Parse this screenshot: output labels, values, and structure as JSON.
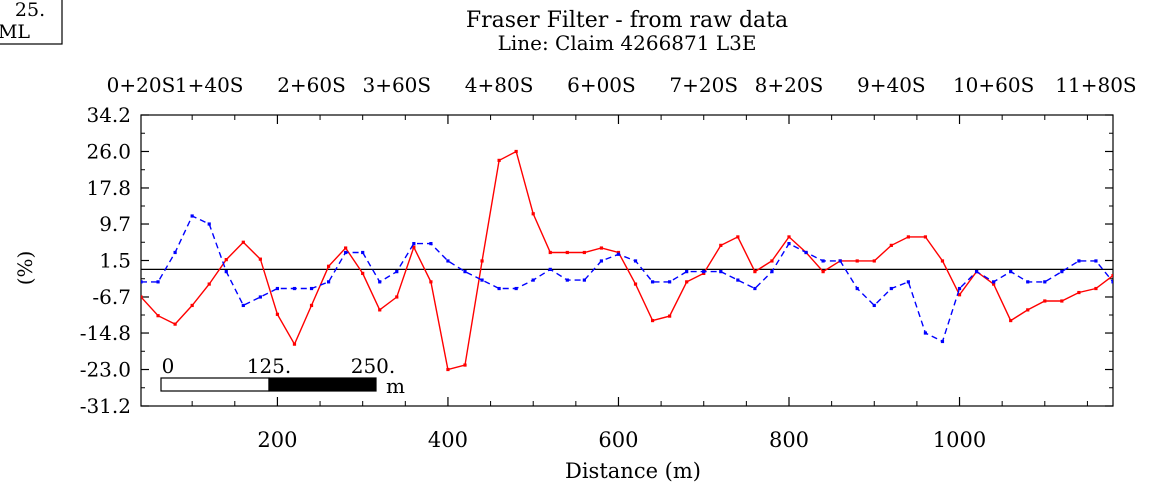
{
  "corner_box": {
    "line1": "25.",
    "line2": "ML"
  },
  "chart_data": {
    "type": "line",
    "title": "Fraser Filter - from raw data",
    "subtitle": "Line: Claim 4266871 L3E",
    "xlabel": "Distance (m)",
    "ylabel": "(%)",
    "xlim": [
      40,
      1180
    ],
    "ylim": [
      -31.2,
      34.2
    ],
    "x_ticks": [
      200,
      400,
      600,
      800,
      1000
    ],
    "y_ticks": [
      34.2,
      26.0,
      17.8,
      9.7,
      1.5,
      -6.7,
      -14.8,
      -23.0,
      -31.2
    ],
    "station_labels": [
      {
        "label": "0+20S",
        "x": 40
      },
      {
        "label": "1+40S",
        "x": 120
      },
      {
        "label": "2+60S",
        "x": 240
      },
      {
        "label": "3+60S",
        "x": 340
      },
      {
        "label": "4+80S",
        "x": 460
      },
      {
        "label": "6+00S",
        "x": 580
      },
      {
        "label": "7+20S",
        "x": 700
      },
      {
        "label": "8+20S",
        "x": 800
      },
      {
        "label": "9+40S",
        "x": 920
      },
      {
        "label": "10+60S",
        "x": 1040
      },
      {
        "label": "11+80S",
        "x": 1160
      }
    ],
    "reference_line_y": -0.5,
    "scale_bar": {
      "labels": [
        "0",
        "125.",
        "250."
      ],
      "unit": "m"
    },
    "grid": false,
    "series": [
      {
        "color": "#ff0000",
        "style": "solid",
        "points": [
          [
            40,
            -6.7
          ],
          [
            60,
            -10.9
          ],
          [
            80,
            -12.8
          ],
          [
            100,
            -8.6
          ],
          [
            120,
            -3.8
          ],
          [
            140,
            1.7
          ],
          [
            160,
            5.6
          ],
          [
            180,
            1.8
          ],
          [
            200,
            -10.6
          ],
          [
            220,
            -17.3
          ],
          [
            240,
            -8.6
          ],
          [
            260,
            0.2
          ],
          [
            280,
            4.3
          ],
          [
            300,
            -1.4
          ],
          [
            320,
            -9.6
          ],
          [
            340,
            -6.7
          ],
          [
            360,
            4.5
          ],
          [
            380,
            -3.3
          ],
          [
            400,
            -23.0
          ],
          [
            420,
            -22.0
          ],
          [
            440,
            1.4
          ],
          [
            460,
            24.0
          ],
          [
            480,
            26.0
          ],
          [
            500,
            12.0
          ],
          [
            520,
            3.3
          ],
          [
            540,
            3.3
          ],
          [
            560,
            3.3
          ],
          [
            580,
            4.3
          ],
          [
            600,
            3.3
          ],
          [
            620,
            -3.8
          ],
          [
            640,
            -12.0
          ],
          [
            660,
            -11.0
          ],
          [
            680,
            -3.3
          ],
          [
            700,
            -1.4
          ],
          [
            720,
            4.9
          ],
          [
            740,
            6.8
          ],
          [
            760,
            -1.0
          ],
          [
            780,
            1.4
          ],
          [
            800,
            6.8
          ],
          [
            820,
            3.3
          ],
          [
            840,
            -1.0
          ],
          [
            860,
            1.4
          ],
          [
            880,
            1.4
          ],
          [
            900,
            1.4
          ],
          [
            920,
            4.9
          ],
          [
            940,
            6.8
          ],
          [
            960,
            6.8
          ],
          [
            980,
            1.4
          ],
          [
            1000,
            -6.2
          ],
          [
            1020,
            -1.0
          ],
          [
            1040,
            -3.8
          ],
          [
            1060,
            -12.0
          ],
          [
            1080,
            -9.6
          ],
          [
            1100,
            -7.6
          ],
          [
            1120,
            -7.6
          ],
          [
            1140,
            -5.7
          ],
          [
            1160,
            -4.8
          ],
          [
            1180,
            -1.9
          ]
        ]
      },
      {
        "color": "#0000ff",
        "style": "dashed",
        "points": [
          [
            40,
            -3.3
          ],
          [
            60,
            -3.3
          ],
          [
            80,
            3.3
          ],
          [
            100,
            11.5
          ],
          [
            120,
            9.7
          ],
          [
            140,
            -1.0
          ],
          [
            160,
            -8.6
          ],
          [
            180,
            -6.7
          ],
          [
            200,
            -4.8
          ],
          [
            220,
            -4.8
          ],
          [
            240,
            -4.8
          ],
          [
            260,
            -3.3
          ],
          [
            280,
            3.3
          ],
          [
            300,
            3.3
          ],
          [
            320,
            -3.3
          ],
          [
            340,
            -1.0
          ],
          [
            360,
            5.3
          ],
          [
            380,
            5.3
          ],
          [
            400,
            1.4
          ],
          [
            420,
            -1.0
          ],
          [
            440,
            -2.9
          ],
          [
            460,
            -4.8
          ],
          [
            480,
            -4.8
          ],
          [
            500,
            -2.9
          ],
          [
            520,
            -0.5
          ],
          [
            540,
            -2.9
          ],
          [
            560,
            -2.9
          ],
          [
            580,
            1.4
          ],
          [
            600,
            2.9
          ],
          [
            620,
            1.4
          ],
          [
            640,
            -3.3
          ],
          [
            660,
            -3.3
          ],
          [
            680,
            -1.0
          ],
          [
            700,
            -1.0
          ],
          [
            720,
            -1.0
          ],
          [
            740,
            -2.9
          ],
          [
            760,
            -4.8
          ],
          [
            780,
            -1.0
          ],
          [
            800,
            5.3
          ],
          [
            820,
            3.3
          ],
          [
            840,
            1.4
          ],
          [
            860,
            1.4
          ],
          [
            880,
            -4.8
          ],
          [
            900,
            -8.6
          ],
          [
            920,
            -4.8
          ],
          [
            940,
            -3.3
          ],
          [
            960,
            -14.8
          ],
          [
            980,
            -16.7
          ],
          [
            1000,
            -4.8
          ],
          [
            1020,
            -1.0
          ],
          [
            1040,
            -3.3
          ],
          [
            1060,
            -1.0
          ],
          [
            1080,
            -3.3
          ],
          [
            1100,
            -3.3
          ],
          [
            1120,
            -1.0
          ],
          [
            1140,
            1.4
          ],
          [
            1160,
            1.4
          ],
          [
            1180,
            -3.3
          ]
        ]
      }
    ]
  }
}
